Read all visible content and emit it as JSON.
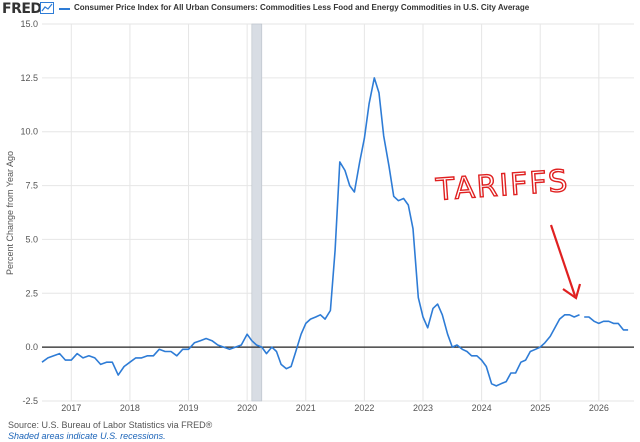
{
  "header": {
    "logo_text": "FRED",
    "logo_icon": "line-chart-icon",
    "legend_label": "Consumer Price Index for All Urban Consumers: Commodities Less Food and Energy Commodities in U.S. City Average"
  },
  "footer": {
    "source": "Source: U.S. Bureau of Labor Statistics via FRED®",
    "note": "Shaded areas indicate U.S. recessions."
  },
  "annotation": {
    "text": "TARIFFS",
    "color": "#e02020"
  },
  "colors": {
    "series": "#2e7cd6",
    "recession": "#d8dde4",
    "zero_line": "#222222",
    "grid": "#e6e6e6"
  },
  "chart_data": {
    "type": "line",
    "title": "",
    "xlabel": "",
    "ylabel": "Percent Change from Year Ago",
    "xlim": [
      2016.5,
      2026.6
    ],
    "ylim": [
      -2.5,
      15.0
    ],
    "yticks": [
      -2.5,
      0.0,
      2.5,
      5.0,
      7.5,
      10.0,
      12.5,
      15.0
    ],
    "ytick_labels": [
      "-2.5",
      "0.0",
      "2.5",
      "5.0",
      "7.5",
      "10.0",
      "12.5",
      "15.0"
    ],
    "xticks": [
      2017,
      2018,
      2019,
      2020,
      2021,
      2022,
      2023,
      2024,
      2025,
      2026
    ],
    "xtick_labels": [
      "2017",
      "2018",
      "2019",
      "2020",
      "2021",
      "2022",
      "2023",
      "2024",
      "2025",
      "2026"
    ],
    "grid": true,
    "recessions": [
      [
        2020.08,
        2020.25
      ]
    ],
    "series": [
      {
        "name": "Consumer Price Index for All Urban Consumers: Commodities Less Food and Energy Commodities in U.S. City Average",
        "segments": [
          {
            "x": [
              2016.5,
              2016.6,
              2016.7,
              2016.8,
              2016.9,
              2017.0,
              2017.1,
              2017.2,
              2017.3,
              2017.4,
              2017.5,
              2017.6,
              2017.7,
              2017.8,
              2017.9,
              2018.0,
              2018.1,
              2018.2,
              2018.3,
              2018.4,
              2018.5,
              2018.6,
              2018.7,
              2018.8,
              2018.9,
              2019.0,
              2019.1,
              2019.2,
              2019.3,
              2019.4,
              2019.5,
              2019.6,
              2019.7,
              2019.8,
              2019.9,
              2020.0,
              2020.08,
              2020.16,
              2020.25,
              2020.33,
              2020.42,
              2020.5,
              2020.58,
              2020.67,
              2020.75,
              2020.83,
              2020.92,
              2021.0,
              2021.08,
              2021.17,
              2021.25,
              2021.33,
              2021.42,
              2021.5,
              2021.58,
              2021.67,
              2021.75,
              2021.83,
              2021.92,
              2022.0,
              2022.08,
              2022.17,
              2022.25,
              2022.33,
              2022.42,
              2022.5,
              2022.58,
              2022.67,
              2022.75,
              2022.83,
              2022.92,
              2023.0,
              2023.08,
              2023.17,
              2023.25,
              2023.33,
              2023.42,
              2023.5,
              2023.58,
              2023.67,
              2023.75,
              2023.83,
              2023.92,
              2024.0,
              2024.08,
              2024.17,
              2024.25,
              2024.33,
              2024.42,
              2024.5,
              2024.58,
              2024.67,
              2024.75,
              2024.83,
              2024.92,
              2025.0,
              2025.08,
              2025.17,
              2025.25,
              2025.33,
              2025.42,
              2025.5,
              2025.58,
              2025.67
            ],
            "y": [
              -0.7,
              -0.5,
              -0.4,
              -0.3,
              -0.6,
              -0.6,
              -0.3,
              -0.5,
              -0.4,
              -0.5,
              -0.8,
              -0.7,
              -0.7,
              -1.3,
              -0.9,
              -0.7,
              -0.5,
              -0.5,
              -0.4,
              -0.4,
              -0.1,
              -0.2,
              -0.2,
              -0.4,
              -0.1,
              -0.1,
              0.2,
              0.3,
              0.4,
              0.3,
              0.1,
              0.0,
              -0.1,
              0.0,
              0.1,
              0.6,
              0.3,
              0.1,
              0.0,
              -0.3,
              0.0,
              -0.2,
              -0.8,
              -1.0,
              -0.9,
              -0.2,
              0.6,
              1.1,
              1.3,
              1.4,
              1.5,
              1.3,
              1.7,
              4.5,
              8.6,
              8.2,
              7.5,
              7.2,
              8.6,
              9.7,
              11.3,
              12.5,
              11.8,
              9.8,
              8.4,
              7.0,
              6.8,
              6.9,
              6.6,
              5.5,
              2.3,
              1.4,
              0.9,
              1.8,
              2.0,
              1.5,
              0.6,
              0.0,
              0.1,
              -0.1,
              -0.2,
              -0.4,
              -0.4,
              -0.6,
              -0.9,
              -1.7,
              -1.8,
              -1.7,
              -1.6,
              -1.2,
              -1.2,
              -0.7,
              -0.6,
              -0.2,
              -0.1,
              0.0,
              0.2,
              0.5,
              0.9,
              1.3,
              1.5,
              1.5,
              1.4,
              1.5
            ]
          },
          {
            "x": [
              2025.75,
              2025.83,
              2025.92,
              2026.0,
              2026.08,
              2026.17,
              2026.25,
              2026.33,
              2026.42,
              2026.5
            ],
            "y": [
              1.4,
              1.4,
              1.2,
              1.1,
              1.2,
              1.2,
              1.1,
              1.1,
              0.8,
              0.8
            ]
          }
        ]
      }
    ]
  }
}
